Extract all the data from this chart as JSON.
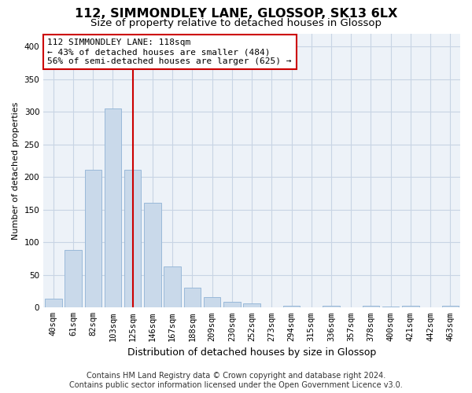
{
  "title": "112, SIMMONDLEY LANE, GLOSSOP, SK13 6LX",
  "subtitle": "Size of property relative to detached houses in Glossop",
  "xlabel": "Distribution of detached houses by size in Glossop",
  "ylabel": "Number of detached properties",
  "footer_line1": "Contains HM Land Registry data © Crown copyright and database right 2024.",
  "footer_line2": "Contains public sector information licensed under the Open Government Licence v3.0.",
  "bar_labels": [
    "40sqm",
    "61sqm",
    "82sqm",
    "103sqm",
    "125sqm",
    "146sqm",
    "167sqm",
    "188sqm",
    "209sqm",
    "230sqm",
    "252sqm",
    "273sqm",
    "294sqm",
    "315sqm",
    "336sqm",
    "357sqm",
    "378sqm",
    "400sqm",
    "421sqm",
    "442sqm",
    "463sqm"
  ],
  "bar_values": [
    14,
    88,
    211,
    305,
    211,
    160,
    63,
    30,
    16,
    9,
    6,
    0,
    3,
    0,
    3,
    0,
    3,
    2,
    3,
    0,
    3
  ],
  "bar_color": "#c9d9ea",
  "bar_edgecolor": "#99b9d9",
  "vline_x": 4,
  "vline_color": "#cc0000",
  "annotation_line1": "112 SIMMONDLEY LANE: 118sqm",
  "annotation_line2": "← 43% of detached houses are smaller (484)",
  "annotation_line3": "56% of semi-detached houses are larger (625) →",
  "annotation_box_color": "#ffffff",
  "annotation_border_color": "#cc0000",
  "ylim": [
    0,
    420
  ],
  "yticks": [
    0,
    50,
    100,
    150,
    200,
    250,
    300,
    350,
    400
  ],
  "grid_color": "#c8d4e4",
  "bg_color": "#edf2f8",
  "title_fontsize": 11.5,
  "subtitle_fontsize": 9.5,
  "xlabel_fontsize": 9,
  "ylabel_fontsize": 8,
  "tick_fontsize": 7.5,
  "annotation_fontsize": 8,
  "footer_fontsize": 7
}
